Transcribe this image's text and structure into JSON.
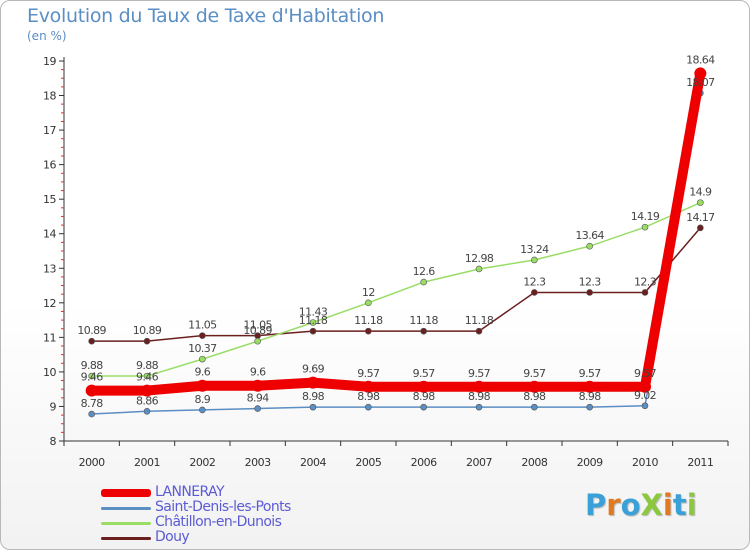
{
  "title": "Evolution du Taux de Taxe d'Habitation",
  "unit": "(en %)",
  "brand": {
    "text": "ProXiti",
    "letter_colors": [
      "#3aa0d8",
      "#e0791f",
      "#3aa0d8",
      "#8dc63f",
      "#e0791f",
      "#3aa0d8",
      "#8dc63f"
    ]
  },
  "chart_data": {
    "type": "line",
    "categories": [
      "2000",
      "2001",
      "2002",
      "2003",
      "2004",
      "2005",
      "2006",
      "2007",
      "2008",
      "2009",
      "2010",
      "2011"
    ],
    "ylim": [
      8,
      19
    ],
    "yticks": [
      8,
      9,
      10,
      11,
      12,
      13,
      14,
      15,
      16,
      17,
      18,
      19
    ],
    "grid": false,
    "series": [
      {
        "name": "LANNERAY",
        "color": "#ee0000",
        "values": [
          9.46,
          9.46,
          9.6,
          9.6,
          9.69,
          9.57,
          9.57,
          9.57,
          9.57,
          9.57,
          9.57,
          18.64
        ],
        "labels": [
          "9.46",
          "9.46",
          "9.6",
          "9.6",
          "9.69",
          "9.57",
          "9.57",
          "9.57",
          "9.57",
          "9.57",
          "9.57",
          "18.64"
        ]
      },
      {
        "name": "Saint-Denis-les-Ponts",
        "color": "#5b8ec3",
        "values": [
          8.78,
          8.86,
          8.9,
          8.94,
          8.98,
          8.98,
          8.98,
          8.98,
          8.98,
          8.98,
          9.02,
          18.07
        ],
        "labels": [
          "8.78",
          "8.86",
          "8.9",
          "8.94",
          "8.98",
          "8.98",
          "8.98",
          "8.98",
          "8.98",
          "8.98",
          "9.02",
          "18.07"
        ]
      },
      {
        "name": "Châtillon-en-Dunois",
        "color": "#99dd66",
        "values": [
          9.88,
          9.88,
          10.37,
          10.89,
          11.43,
          12,
          12.6,
          12.98,
          13.24,
          13.64,
          14.19,
          14.9
        ],
        "labels": [
          "9.88",
          "9.88",
          "10.37",
          "10.89",
          "11.43",
          "12",
          "12.6",
          "12.98",
          "13.24",
          "13.64",
          "14.19",
          "14.9"
        ]
      },
      {
        "name": "Douy",
        "color": "#6b1f1f",
        "values": [
          10.89,
          10.89,
          11.05,
          11.05,
          11.18,
          11.18,
          11.18,
          11.18,
          12.3,
          12.3,
          12.3,
          14.17
        ],
        "labels": [
          "10.89",
          "10.89",
          "11.05",
          "11.05",
          "11.18",
          "11.18",
          "11.18",
          "11.18",
          "12.3",
          "12.3",
          "12.3",
          "14.17"
        ]
      }
    ]
  }
}
